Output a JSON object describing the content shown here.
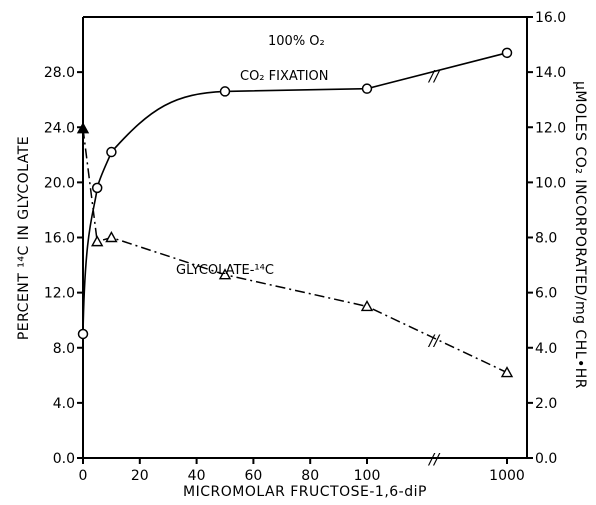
{
  "chart_data": {
    "type": "line",
    "title": "",
    "annotation": "100% O₂",
    "xlabel": "MICROMOLAR FRUCTOSE-1,6-diP",
    "ylabel_left": "PERCENT ¹⁴C IN GLYCOLATE",
    "ylabel_right": "μMOLES CO₂ INCORPORATED/mg CHL•HR",
    "x_ticks": [
      "0",
      "20",
      "40",
      "60",
      "80",
      "100",
      "1000"
    ],
    "x_break": "//",
    "ylim_left": [
      0,
      32
    ],
    "ylim_right": [
      0,
      16
    ],
    "yticks_left": [
      "0.0",
      "4.0",
      "8.0",
      "12.0",
      "16.0",
      "20.0",
      "24.0",
      "28.0"
    ],
    "yticks_right": [
      "0.0",
      "2.0",
      "4.0",
      "6.0",
      "8.0",
      "10.0",
      "12.0",
      "14.0",
      "16.0"
    ],
    "series": [
      {
        "name": "CO₂ FIXATION",
        "axis": "right",
        "marker": "circle",
        "line_style": "solid",
        "x": [
          0,
          5,
          10,
          50,
          100,
          1000
        ],
        "y": [
          4.5,
          9.8,
          11.1,
          13.3,
          13.4,
          14.7
        ]
      },
      {
        "name": "GLYCOLATE-¹⁴C",
        "axis": "left",
        "marker": "triangle",
        "line_style": "dash-dot",
        "x": [
          0,
          5,
          10,
          50,
          100,
          1000
        ],
        "y": [
          23.9,
          15.7,
          16.0,
          13.3,
          11.0,
          6.2
        ]
      }
    ]
  }
}
